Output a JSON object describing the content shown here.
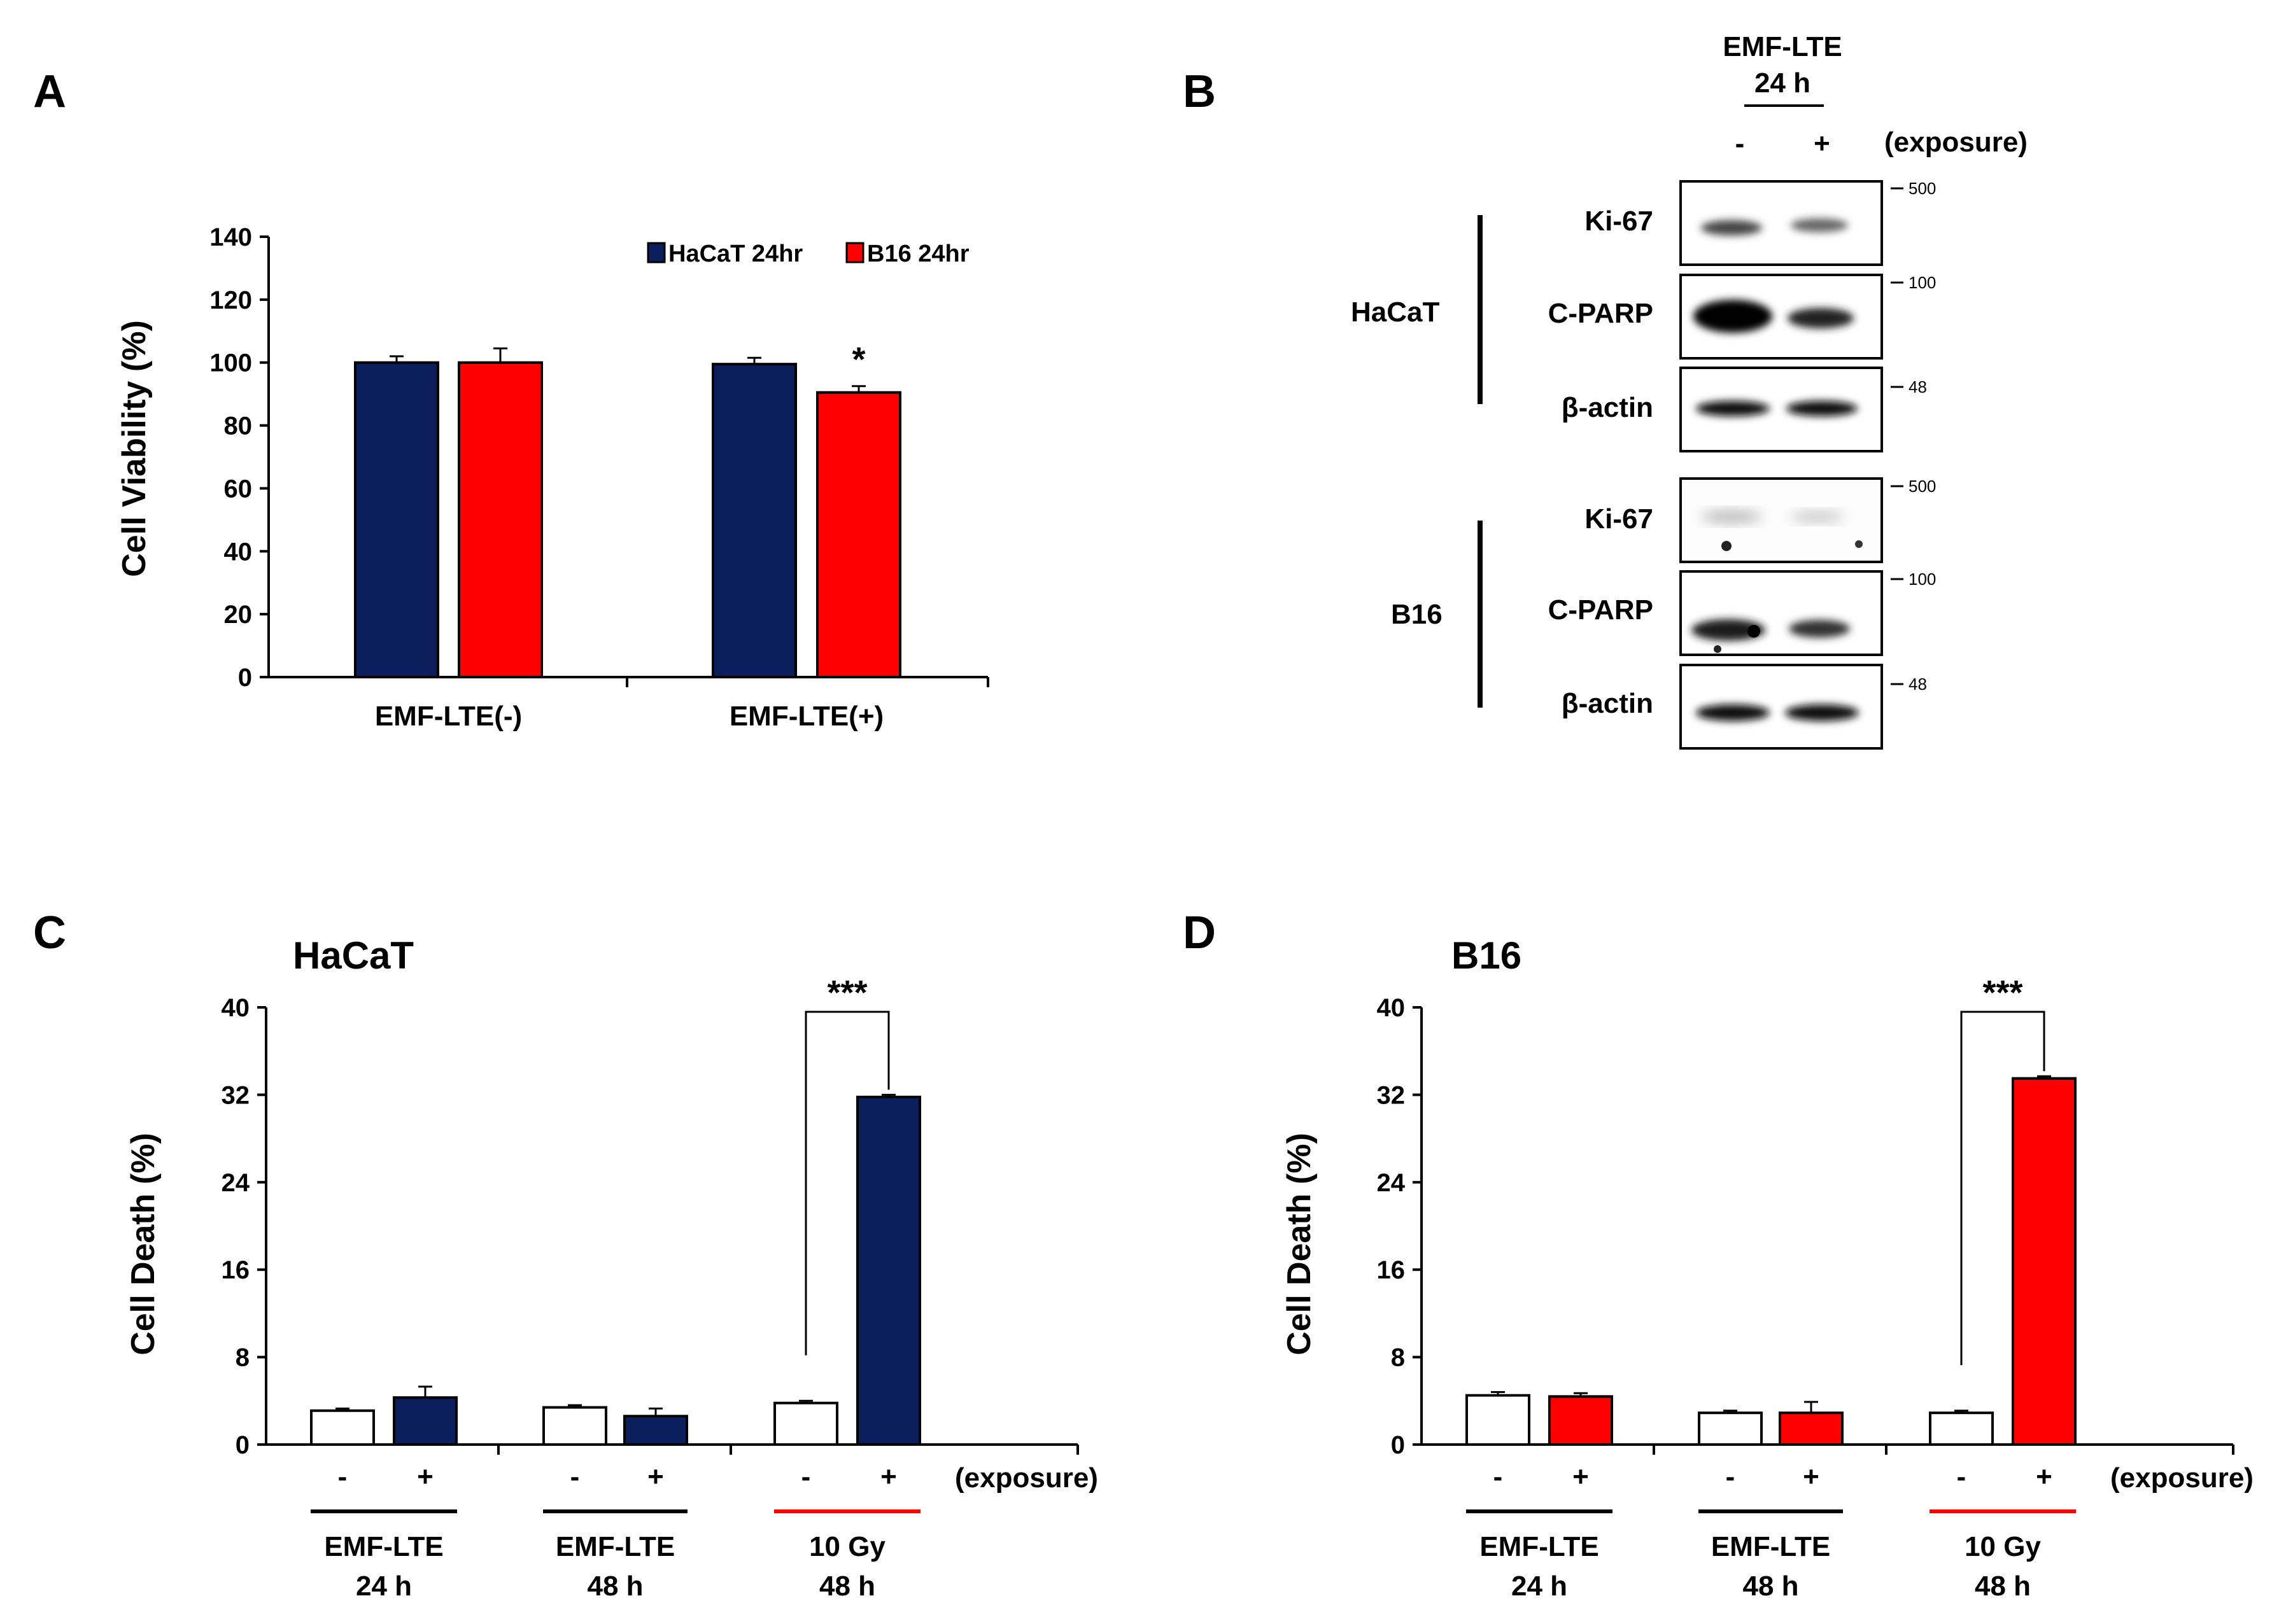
{
  "colors": {
    "navy": "#0b1f5c",
    "red": "#fe0000",
    "white": "#ffffff",
    "black": "#000000"
  },
  "panels": {
    "a": "A",
    "b": "B",
    "c": "C",
    "d": "D"
  },
  "chart_data": [
    {
      "id": "A",
      "type": "bar",
      "title": "",
      "ylabel": "Cell Viability (%)",
      "xlabel": "",
      "ylim": [
        0,
        140
      ],
      "yticks": [
        0,
        20,
        40,
        60,
        80,
        100,
        120,
        140
      ],
      "categories": [
        "EMF-LTE(-)",
        "EMF-LTE(+)"
      ],
      "series": [
        {
          "name": "HaCaT 24hr",
          "color": "#0b1f5c",
          "values": [
            100,
            99.5
          ],
          "errors": [
            2,
            2
          ]
        },
        {
          "name": "B16 24hr",
          "color": "#fe0000",
          "values": [
            100,
            90.5
          ],
          "errors": [
            4.5,
            2
          ]
        }
      ],
      "annotations": [
        {
          "text": "*",
          "category": 1,
          "series": 1
        }
      ],
      "legend": "top-right"
    },
    {
      "id": "C",
      "type": "bar",
      "title": "HaCaT",
      "ylabel": "Cell Death  (%)",
      "ylim": [
        0,
        40
      ],
      "yticks": [
        0,
        8,
        16,
        24,
        32,
        40
      ],
      "exposure_label": "(exposure)",
      "groups": [
        {
          "label": [
            "EMF-LTE",
            "24 h"
          ],
          "underline": "#000000",
          "signs": [
            "-",
            "+"
          ]
        },
        {
          "label": [
            "EMF-LTE",
            "48 h"
          ],
          "underline": "#000000",
          "signs": [
            "-",
            "+"
          ]
        },
        {
          "label": [
            "10 Gy",
            "48 h"
          ],
          "underline": "#fe0000",
          "signs": [
            "-",
            "+"
          ]
        }
      ],
      "bars": [
        {
          "value": 3.1,
          "error": 0.2,
          "color": "#ffffff"
        },
        {
          "value": 4.3,
          "error": 1.0,
          "color": "#0b1f5c"
        },
        {
          "value": 3.4,
          "error": 0.2,
          "color": "#ffffff"
        },
        {
          "value": 2.6,
          "error": 0.7,
          "color": "#0b1f5c"
        },
        {
          "value": 3.8,
          "error": 0.2,
          "color": "#ffffff"
        },
        {
          "value": 31.8,
          "error": 0.2,
          "color": "#0b1f5c"
        }
      ],
      "significance": {
        "text": "***",
        "from_bar": 4,
        "to_bar": 5
      }
    },
    {
      "id": "D",
      "type": "bar",
      "title": "B16",
      "ylabel": "Cell Death  (%)",
      "ylim": [
        0,
        40
      ],
      "yticks": [
        0,
        8,
        16,
        24,
        32,
        40
      ],
      "exposure_label": "(exposure)",
      "groups": [
        {
          "label": [
            "EMF-LTE",
            "24 h"
          ],
          "underline": "#000000",
          "signs": [
            "-",
            "+"
          ]
        },
        {
          "label": [
            "EMF-LTE",
            "48 h"
          ],
          "underline": "#000000",
          "signs": [
            "-",
            "+"
          ]
        },
        {
          "label": [
            "10 Gy",
            "48 h"
          ],
          "underline": "#fe0000",
          "signs": [
            "-",
            "+"
          ]
        }
      ],
      "bars": [
        {
          "value": 4.5,
          "error": 0.3,
          "color": "#ffffff"
        },
        {
          "value": 4.4,
          "error": 0.3,
          "color": "#fe0000"
        },
        {
          "value": 2.9,
          "error": 0.2,
          "color": "#ffffff"
        },
        {
          "value": 2.9,
          "error": 1.0,
          "color": "#fe0000"
        },
        {
          "value": 2.9,
          "error": 0.2,
          "color": "#ffffff"
        },
        {
          "value": 33.5,
          "error": 0.2,
          "color": "#fe0000"
        }
      ],
      "significance": {
        "text": "***",
        "from_bar": 4,
        "to_bar": 5
      }
    }
  ],
  "western_blot": {
    "header": [
      "EMF-LTE",
      "24 h"
    ],
    "lanes": [
      "-",
      "+"
    ],
    "exposure_label": "(exposure)",
    "groups": [
      {
        "cell_line": "HaCaT",
        "blots": [
          {
            "protein": "Ki-67",
            "marker": "500"
          },
          {
            "protein": "C-PARP",
            "marker": "100"
          },
          {
            "protein": "β-actin",
            "marker": "48"
          }
        ]
      },
      {
        "cell_line": "B16",
        "blots": [
          {
            "protein": "Ki-67",
            "marker": "500"
          },
          {
            "protein": "C-PARP",
            "marker": "100"
          },
          {
            "protein": "β-actin",
            "marker": "48"
          }
        ]
      }
    ]
  }
}
